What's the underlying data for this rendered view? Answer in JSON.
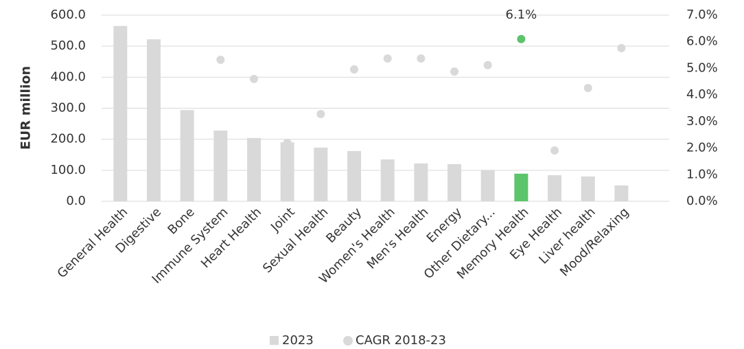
{
  "chart_data": {
    "type": "bar-scatter",
    "y_axis_label": "EUR million",
    "categories": [
      "General Health",
      "Digestive",
      "Bone",
      "Immune System",
      "Heart Health",
      "Joint",
      "Sexual Health",
      "Beauty",
      "Women's Health",
      "Men's Health",
      "Energy",
      "Other Dietary...",
      "Memory Health",
      "Eye Health",
      "Liver health",
      "Mood/Relaxing"
    ],
    "series": [
      {
        "name": "2023",
        "type": "bar",
        "color": "#d9d9d9",
        "colors": [
          "#d9d9d9",
          "#d9d9d9",
          "#d9d9d9",
          "#d9d9d9",
          "#d9d9d9",
          "#d9d9d9",
          "#d9d9d9",
          "#d9d9d9",
          "#d9d9d9",
          "#d9d9d9",
          "#d9d9d9",
          "#d9d9d9",
          "#5cc46a",
          "#d9d9d9",
          "#d9d9d9",
          "#d9d9d9"
        ],
        "values": [
          565,
          522,
          294,
          228,
          204,
          190,
          173,
          162,
          135,
          122,
          120,
          100,
          89,
          84,
          80,
          51
        ]
      },
      {
        "name": "CAGR 2018-23",
        "type": "scatter",
        "axis": "y2",
        "color": "#d9d9d9",
        "colors": [
          "#d9d9d9",
          "#d9d9d9",
          "#d9d9d9",
          "#d9d9d9",
          "#d9d9d9",
          "#d9d9d9",
          "#d9d9d9",
          "#d9d9d9",
          "#d9d9d9",
          "#d9d9d9",
          "#d9d9d9",
          "#d9d9d9",
          "#5cc46a",
          "#d9d9d9",
          "#d9d9d9",
          "#d9d9d9"
        ],
        "values": [
          null,
          null,
          null,
          5.32,
          4.6,
          2.2,
          3.28,
          4.96,
          5.37,
          5.37,
          4.88,
          5.12,
          6.1,
          1.91,
          4.26,
          5.76
        ],
        "value_labels": [
          null,
          null,
          null,
          null,
          null,
          null,
          null,
          null,
          null,
          null,
          null,
          null,
          "6.1%",
          null,
          null,
          null
        ]
      }
    ],
    "ylim": [
      0,
      600
    ],
    "yticks": [
      {
        "value": 0,
        "label": "0.0"
      },
      {
        "value": 100,
        "label": "100.0"
      },
      {
        "value": 200,
        "label": "200.0"
      },
      {
        "value": 300,
        "label": "300.0"
      },
      {
        "value": 400,
        "label": "400.0"
      },
      {
        "value": 500,
        "label": "500.0"
      },
      {
        "value": 600,
        "label": "600.0"
      }
    ],
    "y2lim": [
      0,
      7
    ],
    "y2ticks": [
      {
        "value": 0,
        "label": "0.0%"
      },
      {
        "value": 1,
        "label": "1.0%"
      },
      {
        "value": 2,
        "label": "2.0%"
      },
      {
        "value": 3,
        "label": "3.0%"
      },
      {
        "value": 4,
        "label": "4.0%"
      },
      {
        "value": 5,
        "label": "5.0%"
      },
      {
        "value": 6,
        "label": "6.0%"
      },
      {
        "value": 7,
        "label": "7.0%"
      }
    ],
    "grid": true,
    "legend": "bottom"
  }
}
